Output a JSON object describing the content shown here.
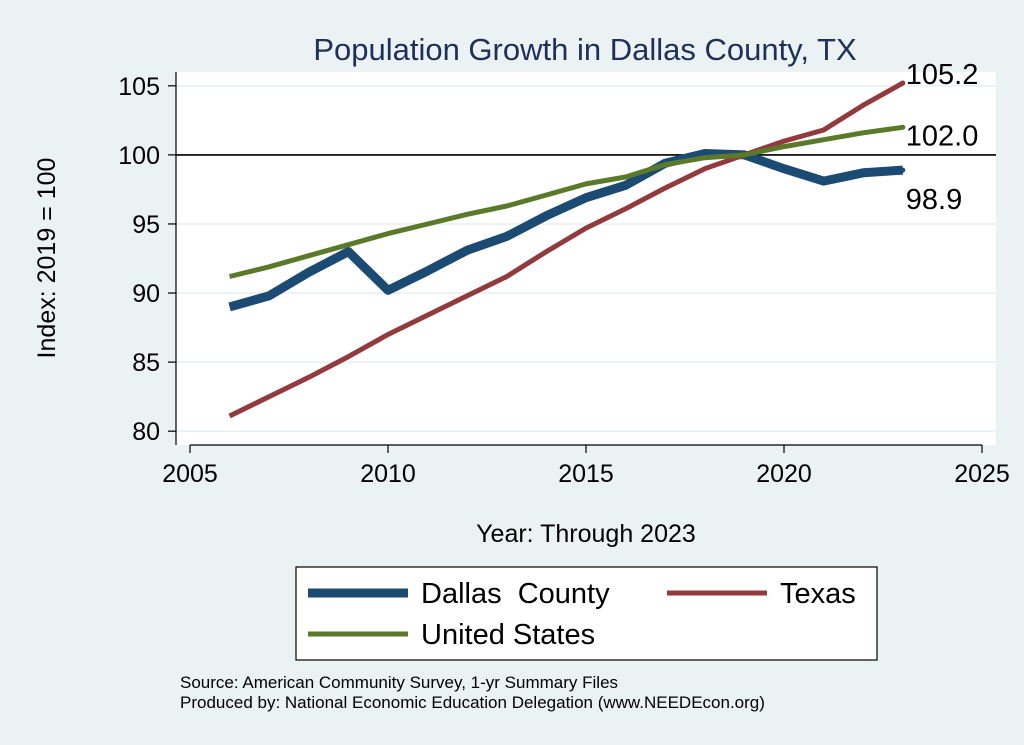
{
  "chart_data": {
    "type": "line",
    "title": "Population Growth in Dallas County, TX",
    "xlabel": "Year: Through 2023",
    "ylabel": "Index: 2019 = 100",
    "xlim": [
      2005,
      2025
    ],
    "ylim": [
      79,
      106
    ],
    "xticks": [
      2005,
      2010,
      2015,
      2020,
      2025
    ],
    "yticks": [
      80,
      85,
      90,
      95,
      100,
      105
    ],
    "reference_line": 100,
    "grid": true,
    "legend_position": "bottom",
    "series": [
      {
        "name": "Dallas  County",
        "color": "#1b4a73",
        "width": "thick",
        "x": [
          2006,
          2007,
          2008,
          2009,
          2010,
          2011,
          2012,
          2013,
          2014,
          2015,
          2016,
          2017,
          2018,
          2019,
          2020,
          2021,
          2022,
          2023
        ],
        "values": [
          89.0,
          89.8,
          91.5,
          93.0,
          90.2,
          91.6,
          93.1,
          94.1,
          95.6,
          96.9,
          97.8,
          99.4,
          100.1,
          100.0,
          99.0,
          98.1,
          98.7,
          98.9
        ],
        "end_label": "98.9"
      },
      {
        "name": "Texas",
        "color": "#923a3e",
        "width": "medium",
        "x": [
          2006,
          2007,
          2008,
          2009,
          2010,
          2011,
          2012,
          2013,
          2014,
          2015,
          2016,
          2017,
          2018,
          2019,
          2020,
          2021,
          2022,
          2023
        ],
        "values": [
          81.1,
          82.5,
          83.9,
          85.4,
          87.0,
          88.4,
          89.8,
          91.2,
          93.0,
          94.7,
          96.1,
          97.6,
          99.0,
          100.0,
          101.0,
          101.8,
          103.6,
          105.2
        ],
        "end_label": "105.2"
      },
      {
        "name": "United States",
        "color": "#5a7a2a",
        "width": "medium",
        "x": [
          2006,
          2007,
          2008,
          2009,
          2010,
          2011,
          2012,
          2013,
          2014,
          2015,
          2016,
          2017,
          2018,
          2019,
          2020,
          2021,
          2022,
          2023
        ],
        "values": [
          91.2,
          91.9,
          92.7,
          93.5,
          94.3,
          95.0,
          95.7,
          96.3,
          97.1,
          97.9,
          98.4,
          99.3,
          99.8,
          100.0,
          100.6,
          101.1,
          101.6,
          102.0
        ],
        "end_label": "102.0"
      }
    ]
  },
  "footer": {
    "source": "Source: American Community Survey, 1-yr Summary Files",
    "produced_by": "Produced by: National Economic Education Delegation (www.NEEDEcon.org)"
  }
}
